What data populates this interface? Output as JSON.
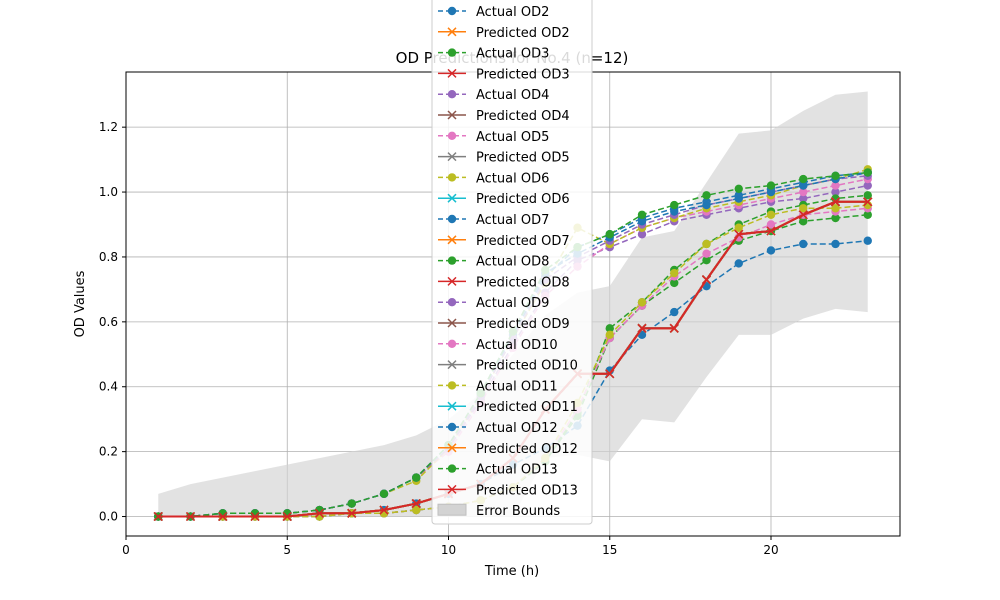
{
  "chart_data": {
    "type": "line",
    "title": "OD Predictions for No.4 (n=12)",
    "xlabel": "Time (h)",
    "ylabel": "OD Values",
    "xlim": [
      0,
      24
    ],
    "ylim": [
      -0.06,
      1.37
    ],
    "xticks": [
      0,
      5,
      10,
      15,
      20
    ],
    "yticks": [
      0.0,
      0.2,
      0.4,
      0.6,
      0.8,
      1.0,
      1.2
    ],
    "grid": true,
    "legend_position": "top-center",
    "x": [
      1,
      2,
      3,
      4,
      5,
      6,
      7,
      8,
      9,
      10,
      11,
      12,
      13,
      14,
      15,
      16,
      17,
      18,
      19,
      20,
      21,
      22,
      23
    ],
    "series": [
      {
        "name": "Actual OD2",
        "style": "dashed",
        "marker": "circle",
        "color": "#1f77b4",
        "values": [
          0.0,
          0.0,
          0.0,
          0.0,
          0.0,
          0.01,
          0.01,
          0.02,
          0.04,
          0.07,
          0.1,
          0.16,
          0.21,
          0.28,
          0.45,
          0.56,
          0.63,
          0.71,
          0.78,
          0.82,
          0.84,
          0.84,
          0.85
        ]
      },
      {
        "name": "Predicted OD2",
        "style": "solid",
        "marker": "x",
        "color": "#ff7f0e",
        "values": [
          0.0,
          0.0,
          0.0,
          0.0,
          0.0,
          0.01,
          0.01,
          0.02,
          0.04,
          0.07,
          0.1,
          0.18,
          0.33,
          0.44,
          0.44,
          0.58,
          0.58,
          0.73,
          0.87,
          0.88,
          0.93,
          0.97,
          0.97
        ]
      },
      {
        "name": "Actual OD3",
        "style": "dashed",
        "marker": "circle",
        "color": "#2ca02c",
        "values": [
          0.0,
          0.0,
          0.0,
          0.0,
          0.0,
          0.0,
          0.01,
          0.01,
          0.02,
          0.03,
          0.05,
          0.09,
          0.17,
          0.31,
          0.55,
          0.65,
          0.72,
          0.79,
          0.85,
          0.88,
          0.91,
          0.92,
          0.93
        ]
      },
      {
        "name": "Predicted OD3",
        "style": "solid",
        "marker": "x",
        "color": "#d62728",
        "values": [
          0.0,
          0.0,
          0.0,
          0.0,
          0.0,
          0.01,
          0.01,
          0.02,
          0.04,
          0.07,
          0.1,
          0.18,
          0.33,
          0.44,
          0.44,
          0.58,
          0.58,
          0.73,
          0.87,
          0.88,
          0.93,
          0.97,
          0.97
        ]
      },
      {
        "name": "Actual OD4",
        "style": "dashed",
        "marker": "circle",
        "color": "#9467bd",
        "values": [
          0.0,
          0.0,
          0.01,
          0.01,
          0.01,
          0.02,
          0.04,
          0.07,
          0.12,
          0.21,
          0.36,
          0.53,
          0.69,
          0.79,
          0.83,
          0.87,
          0.91,
          0.93,
          0.95,
          0.97,
          0.98,
          1.0,
          1.02
        ]
      },
      {
        "name": "Predicted OD4",
        "style": "solid",
        "marker": "x",
        "color": "#8c564b",
        "values": [
          0.0,
          0.0,
          0.0,
          0.0,
          0.0,
          0.01,
          0.01,
          0.02,
          0.04,
          0.07,
          0.1,
          0.18,
          0.33,
          0.44,
          0.44,
          0.58,
          0.58,
          0.73,
          0.87,
          0.88,
          0.93,
          0.97,
          0.97
        ]
      },
      {
        "name": "Actual OD5",
        "style": "dashed",
        "marker": "circle",
        "color": "#e377c2",
        "values": [
          0.0,
          0.0,
          0.01,
          0.01,
          0.01,
          0.02,
          0.04,
          0.07,
          0.12,
          0.2,
          0.35,
          0.52,
          0.68,
          0.77,
          0.84,
          0.89,
          0.92,
          0.94,
          0.96,
          0.98,
          1.0,
          1.02,
          1.04
        ]
      },
      {
        "name": "Predicted OD5",
        "style": "solid",
        "marker": "x",
        "color": "#7f7f7f",
        "values": [
          0.0,
          0.0,
          0.0,
          0.0,
          0.0,
          0.01,
          0.01,
          0.02,
          0.04,
          0.07,
          0.1,
          0.18,
          0.33,
          0.44,
          0.44,
          0.58,
          0.58,
          0.73,
          0.87,
          0.88,
          0.93,
          0.97,
          0.97
        ]
      },
      {
        "name": "Actual OD6",
        "style": "dashed",
        "marker": "circle",
        "color": "#bcbd22",
        "values": [
          0.0,
          0.0,
          0.01,
          0.01,
          0.01,
          0.02,
          0.04,
          0.07,
          0.11,
          0.21,
          0.37,
          0.55,
          0.72,
          0.89,
          0.84,
          0.89,
          0.92,
          0.95,
          0.97,
          0.99,
          1.02,
          1.04,
          1.07
        ]
      },
      {
        "name": "Predicted OD6",
        "style": "solid",
        "marker": "x",
        "color": "#17becf",
        "values": [
          0.0,
          0.0,
          0.0,
          0.0,
          0.0,
          0.01,
          0.01,
          0.02,
          0.04,
          0.07,
          0.1,
          0.18,
          0.33,
          0.44,
          0.44,
          0.58,
          0.58,
          0.73,
          0.87,
          0.88,
          0.93,
          0.97,
          0.97
        ]
      },
      {
        "name": "Actual OD7",
        "style": "dashed",
        "marker": "circle",
        "color": "#1f77b4",
        "values": [
          0.0,
          0.0,
          0.01,
          0.01,
          0.01,
          0.02,
          0.04,
          0.07,
          0.12,
          0.22,
          0.38,
          0.56,
          0.74,
          0.83,
          0.87,
          0.92,
          0.95,
          0.97,
          0.99,
          1.01,
          1.03,
          1.05,
          1.06
        ]
      },
      {
        "name": "Predicted OD7",
        "style": "solid",
        "marker": "x",
        "color": "#ff7f0e",
        "values": [
          0.0,
          0.0,
          0.0,
          0.0,
          0.0,
          0.01,
          0.01,
          0.02,
          0.04,
          0.07,
          0.1,
          0.18,
          0.33,
          0.44,
          0.44,
          0.58,
          0.58,
          0.73,
          0.87,
          0.88,
          0.93,
          0.97,
          0.97
        ]
      },
      {
        "name": "Actual OD8",
        "style": "dashed",
        "marker": "circle",
        "color": "#2ca02c",
        "values": [
          0.0,
          0.0,
          0.0,
          0.0,
          0.0,
          0.0,
          0.01,
          0.01,
          0.02,
          0.03,
          0.05,
          0.09,
          0.17,
          0.32,
          0.58,
          0.66,
          0.76,
          0.84,
          0.9,
          0.94,
          0.96,
          0.98,
          0.99
        ]
      },
      {
        "name": "Predicted OD8",
        "style": "solid",
        "marker": "x",
        "color": "#d62728",
        "values": [
          0.0,
          0.0,
          0.0,
          0.0,
          0.0,
          0.01,
          0.01,
          0.02,
          0.04,
          0.07,
          0.1,
          0.18,
          0.33,
          0.44,
          0.44,
          0.58,
          0.58,
          0.73,
          0.87,
          0.88,
          0.93,
          0.97,
          0.97
        ]
      },
      {
        "name": "Actual OD9",
        "style": "dashed",
        "marker": "circle",
        "color": "#9467bd",
        "values": [
          0.0,
          0.0,
          0.01,
          0.01,
          0.01,
          0.02,
          0.04,
          0.07,
          0.12,
          0.21,
          0.37,
          0.55,
          0.73,
          0.8,
          0.85,
          0.9,
          0.93,
          0.96,
          0.98,
          1.0,
          1.02,
          1.04,
          1.05
        ]
      },
      {
        "name": "Predicted OD9",
        "style": "solid",
        "marker": "x",
        "color": "#8c564b",
        "values": [
          0.0,
          0.0,
          0.0,
          0.0,
          0.0,
          0.01,
          0.01,
          0.02,
          0.04,
          0.07,
          0.1,
          0.18,
          0.33,
          0.44,
          0.44,
          0.58,
          0.58,
          0.73,
          0.87,
          0.88,
          0.93,
          0.97,
          0.97
        ]
      },
      {
        "name": "Actual OD10",
        "style": "dashed",
        "marker": "circle",
        "color": "#e377c2",
        "values": [
          0.0,
          0.0,
          0.0,
          0.0,
          0.0,
          0.0,
          0.01,
          0.01,
          0.02,
          0.03,
          0.05,
          0.09,
          0.18,
          0.33,
          0.55,
          0.65,
          0.74,
          0.81,
          0.86,
          0.9,
          0.93,
          0.94,
          0.95
        ]
      },
      {
        "name": "Predicted OD10",
        "style": "solid",
        "marker": "x",
        "color": "#7f7f7f",
        "values": [
          0.0,
          0.0,
          0.0,
          0.0,
          0.0,
          0.01,
          0.01,
          0.02,
          0.04,
          0.07,
          0.1,
          0.18,
          0.33,
          0.44,
          0.44,
          0.58,
          0.58,
          0.73,
          0.87,
          0.88,
          0.93,
          0.97,
          0.97
        ]
      },
      {
        "name": "Actual OD11",
        "style": "dashed",
        "marker": "circle",
        "color": "#bcbd22",
        "values": [
          0.0,
          0.0,
          0.0,
          0.0,
          0.0,
          0.0,
          0.01,
          0.01,
          0.02,
          0.03,
          0.05,
          0.09,
          0.18,
          0.35,
          0.56,
          0.66,
          0.75,
          0.84,
          0.89,
          0.93,
          0.95,
          0.95,
          0.96
        ]
      },
      {
        "name": "Predicted OD11",
        "style": "solid",
        "marker": "x",
        "color": "#17becf",
        "values": [
          0.0,
          0.0,
          0.0,
          0.0,
          0.0,
          0.01,
          0.01,
          0.02,
          0.04,
          0.07,
          0.1,
          0.18,
          0.33,
          0.44,
          0.44,
          0.58,
          0.58,
          0.73,
          0.87,
          0.88,
          0.93,
          0.97,
          0.97
        ]
      },
      {
        "name": "Actual OD12",
        "style": "dashed",
        "marker": "circle",
        "color": "#1f77b4",
        "values": [
          0.0,
          0.0,
          0.01,
          0.01,
          0.01,
          0.02,
          0.04,
          0.07,
          0.12,
          0.22,
          0.38,
          0.57,
          0.75,
          0.81,
          0.86,
          0.91,
          0.94,
          0.96,
          0.98,
          1.0,
          1.02,
          1.04,
          1.06
        ]
      },
      {
        "name": "Predicted OD12",
        "style": "solid",
        "marker": "x",
        "color": "#ff7f0e",
        "values": [
          0.0,
          0.0,
          0.0,
          0.0,
          0.0,
          0.01,
          0.01,
          0.02,
          0.04,
          0.07,
          0.1,
          0.18,
          0.33,
          0.44,
          0.44,
          0.58,
          0.58,
          0.73,
          0.87,
          0.88,
          0.93,
          0.97,
          0.97
        ]
      },
      {
        "name": "Actual OD13",
        "style": "dashed",
        "marker": "circle",
        "color": "#2ca02c",
        "values": [
          0.0,
          0.0,
          0.01,
          0.01,
          0.01,
          0.02,
          0.04,
          0.07,
          0.12,
          0.22,
          0.38,
          0.57,
          0.76,
          0.83,
          0.87,
          0.93,
          0.96,
          0.99,
          1.01,
          1.02,
          1.04,
          1.05,
          1.06
        ]
      },
      {
        "name": "Predicted OD13",
        "style": "solid",
        "marker": "x",
        "color": "#d62728",
        "values": [
          0.0,
          0.0,
          0.0,
          0.0,
          0.0,
          0.01,
          0.01,
          0.02,
          0.04,
          0.07,
          0.1,
          0.18,
          0.33,
          0.44,
          0.44,
          0.58,
          0.58,
          0.73,
          0.87,
          0.88,
          0.93,
          0.97,
          0.97
        ]
      }
    ],
    "error_bounds": {
      "name": "Error Bounds",
      "color": "#d3d3d3",
      "upper": [
        0.07,
        0.1,
        0.12,
        0.14,
        0.16,
        0.18,
        0.2,
        0.22,
        0.25,
        0.3,
        0.38,
        0.5,
        0.62,
        0.69,
        0.71,
        0.86,
        0.88,
        1.03,
        1.18,
        1.19,
        1.25,
        1.3,
        1.31
      ],
      "lower": [
        0.0,
        0.0,
        0.0,
        0.0,
        0.0,
        0.0,
        0.0,
        0.0,
        0.0,
        0.0,
        0.0,
        0.0,
        0.18,
        0.19,
        0.17,
        0.3,
        0.29,
        0.43,
        0.56,
        0.56,
        0.61,
        0.64,
        0.63
      ]
    }
  }
}
